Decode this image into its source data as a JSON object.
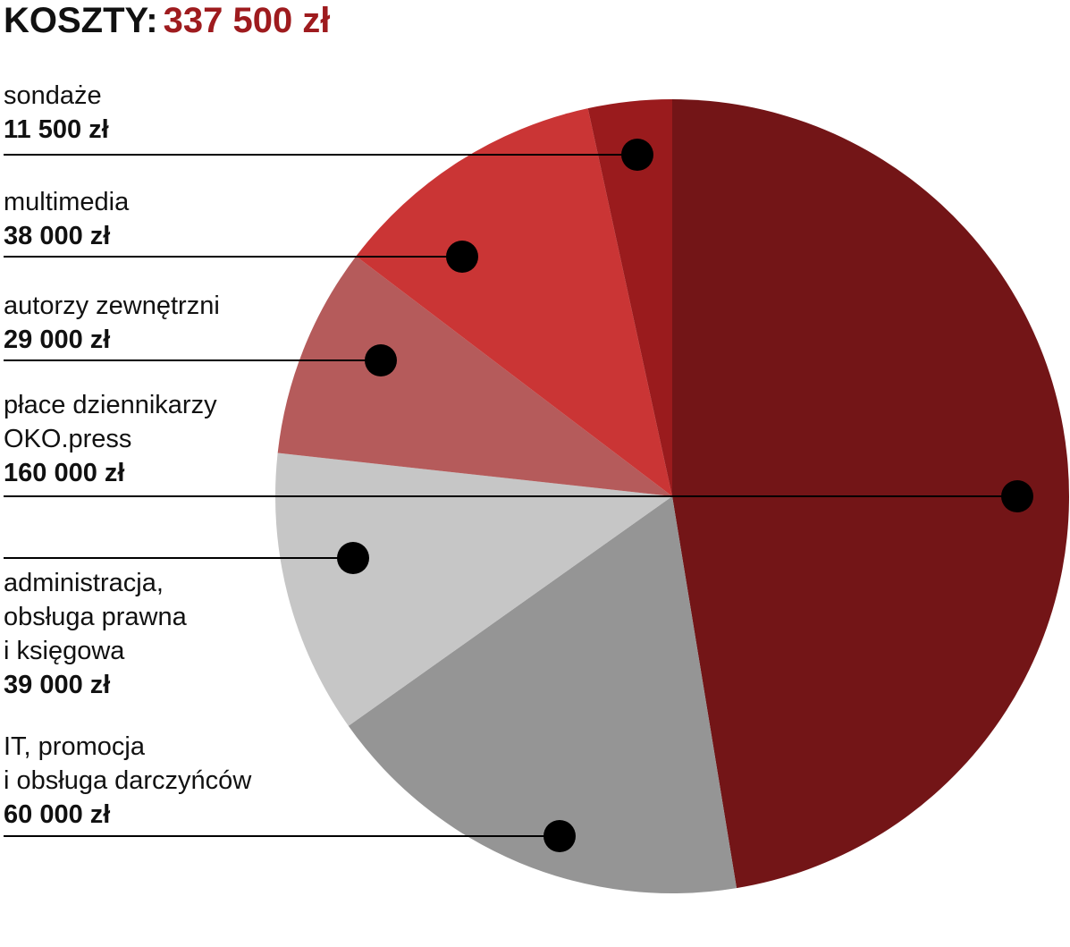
{
  "title": {
    "label": "KOSZTY",
    "separator": ":",
    "total": "337 500 zł"
  },
  "chart_data": {
    "type": "pie",
    "start": "12 o'clock",
    "direction": "clockwise",
    "slices": [
      {
        "key": "place",
        "label_lines": [
          "płace dziennikarzy",
          "OKO.press"
        ],
        "value": 160000,
        "value_label": "160 000 zł",
        "color": "#731517"
      },
      {
        "key": "it",
        "label_lines": [
          "IT, promocja",
          "i obsługa darczyńców"
        ],
        "value": 60000,
        "value_label": "60 000 zł",
        "color": "#959595"
      },
      {
        "key": "admin",
        "label_lines": [
          "administracja,",
          "obsługa prawna",
          "i księgowa"
        ],
        "value": 39000,
        "value_label": "39 000 zł",
        "color": "#c6c6c6"
      },
      {
        "key": "autorzy",
        "label_lines": [
          "autorzy zewnętrzni"
        ],
        "value": 29000,
        "value_label": "29 000 zł",
        "color": "#b55b5b"
      },
      {
        "key": "multimedia",
        "label_lines": [
          "multimedia"
        ],
        "value": 38000,
        "value_label": "38 000 zł",
        "color": "#ca3535"
      },
      {
        "key": "sondaze",
        "label_lines": [
          "sondaże"
        ],
        "value": 11500,
        "value_label": "11 500 zł",
        "color": "#9a1b1d"
      }
    ]
  }
}
